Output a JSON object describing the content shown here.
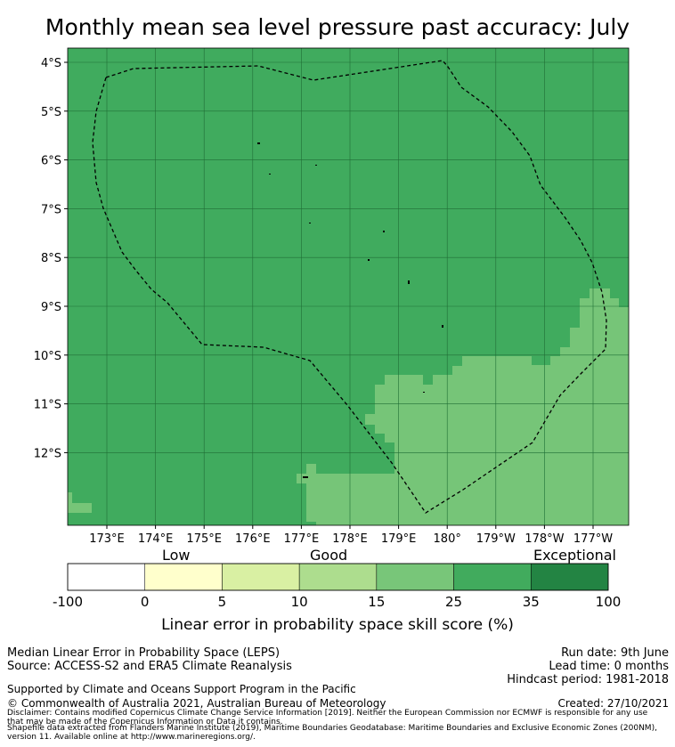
{
  "title": "Monthly mean sea level pressure past accuracy: July",
  "map": {
    "lat_labels": [
      "4°S",
      "5°S",
      "6°S",
      "7°S",
      "8°S",
      "9°S",
      "10°S",
      "11°S",
      "12°S"
    ],
    "lon_labels": [
      "173°E",
      "174°E",
      "175°E",
      "176°E",
      "177°E",
      "178°E",
      "179°E",
      "180°",
      "179°W",
      "178°W",
      "177°W"
    ],
    "colors": {
      "good": "#40ab5e",
      "fair": "#76c578",
      "grid": "#1f6e35",
      "boundary": "#000000"
    }
  },
  "colorbar": {
    "category_labels": {
      "low": "Low",
      "good": "Good",
      "exceptional": "Exceptional"
    },
    "ticks": [
      "-100",
      "0",
      "5",
      "10",
      "15",
      "25",
      "35",
      "100"
    ],
    "bins": [
      {
        "from": -100,
        "to": 0,
        "color": "#ffffff"
      },
      {
        "from": 0,
        "to": 5,
        "color": "#ffffcc"
      },
      {
        "from": 5,
        "to": 10,
        "color": "#d9f0a3"
      },
      {
        "from": 10,
        "to": 15,
        "color": "#addd8e"
      },
      {
        "from": 15,
        "to": 25,
        "color": "#78c679"
      },
      {
        "from": 25,
        "to": 35,
        "color": "#41ab5d"
      },
      {
        "from": 35,
        "to": 100,
        "color": "#238443"
      }
    ],
    "title": "Linear error in probability space skill score (%)"
  },
  "info": {
    "left_line1": "Median Linear Error in Probability Space (LEPS)",
    "left_line2": "Source: ACCESS-S2 and ERA5 Climate Reanalysis",
    "right_line1": "Run date: 9th June",
    "right_line2": "Lead time: 0 months",
    "right_line3": "Hindcast period: 1981-2018",
    "support": "Supported by Climate and Oceans Support Program in the Pacific",
    "copyright": "© Commonwealth of Australia 2021, Australian Bureau of Meteorology",
    "created": "Created: 27/10/2021",
    "disclaimer1": "Disclaimer: Contains modified Copernicus Climate Change Service Information [2019]. Neither the European Commission nor ECMWF is responsible for any use",
    "disclaimer2": "that may be made of the Copernicus Information or Data it contains.",
    "shapefile1": "Shapefile data extracted from Flanders Marine Institute (2019), Maritime Boundaries Geodatabase: Maritime Boundaries and Exclusive Economic Zones (200NM),",
    "shapefile2": "version 11. Available online at http://www.marineregions.org/."
  }
}
